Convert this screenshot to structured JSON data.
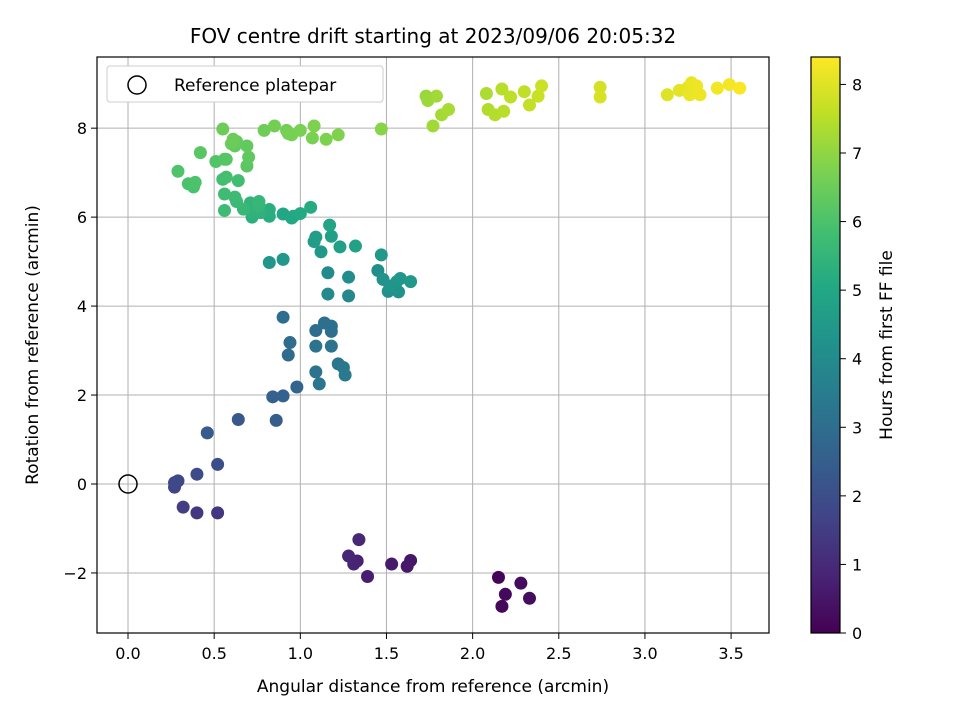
{
  "chart_data": {
    "type": "scatter",
    "title": "FOV centre drift starting at 2023/09/06 20:05:32",
    "xlabel": "Angular distance from reference (arcmin)",
    "ylabel": "Rotation from reference (arcmin)",
    "xlim": [
      -0.18,
      3.72
    ],
    "ylim": [
      -3.35,
      9.6
    ],
    "xticks": [
      0.0,
      0.5,
      1.0,
      1.5,
      2.0,
      2.5,
      3.0,
      3.5
    ],
    "xtick_labels": [
      "0.0",
      "0.5",
      "1.0",
      "1.5",
      "2.0",
      "2.5",
      "3.0",
      "3.5"
    ],
    "yticks": [
      -2,
      0,
      2,
      4,
      6,
      8
    ],
    "ytick_labels": [
      "−2",
      "0",
      "2",
      "4",
      "6",
      "8"
    ],
    "grid": true,
    "legend": {
      "position": "upper-left",
      "entries": [
        "Reference platepar"
      ]
    },
    "reference_point": {
      "x": 0.0,
      "y": 0.0,
      "label": "Reference platepar"
    },
    "colorbar": {
      "label": "Hours from first FF file",
      "colormap": "viridis",
      "range": [
        0,
        8.4
      ],
      "ticks": [
        0,
        1,
        2,
        3,
        4,
        5,
        6,
        7,
        8
      ],
      "tick_labels": [
        "0",
        "1",
        "2",
        "3",
        "4",
        "5",
        "6",
        "7",
        "8"
      ]
    },
    "points": [
      {
        "x": 2.15,
        "y": -2.1,
        "h": 0.1
      },
      {
        "x": 2.17,
        "y": -2.75,
        "h": 0.15
      },
      {
        "x": 2.19,
        "y": -2.48,
        "h": 0.2
      },
      {
        "x": 2.28,
        "y": -2.23,
        "h": 0.25
      },
      {
        "x": 2.33,
        "y": -2.57,
        "h": 0.3
      },
      {
        "x": 1.64,
        "y": -1.72,
        "h": 0.5
      },
      {
        "x": 1.62,
        "y": -1.85,
        "h": 0.55
      },
      {
        "x": 1.53,
        "y": -1.8,
        "h": 0.6
      },
      {
        "x": 1.39,
        "y": -2.08,
        "h": 0.7
      },
      {
        "x": 1.33,
        "y": -1.73,
        "h": 0.8
      },
      {
        "x": 1.31,
        "y": -1.8,
        "h": 0.85
      },
      {
        "x": 1.28,
        "y": -1.62,
        "h": 0.9
      },
      {
        "x": 1.34,
        "y": -1.25,
        "h": 0.95
      },
      {
        "x": 0.52,
        "y": -0.65,
        "h": 1.3
      },
      {
        "x": 0.4,
        "y": -0.65,
        "h": 1.4
      },
      {
        "x": 0.32,
        "y": -0.52,
        "h": 1.5
      },
      {
        "x": 0.27,
        "y": -0.07,
        "h": 1.7
      },
      {
        "x": 0.27,
        "y": 0.03,
        "h": 1.8
      },
      {
        "x": 0.29,
        "y": 0.07,
        "h": 1.85
      },
      {
        "x": 0.4,
        "y": 0.22,
        "h": 1.9
      },
      {
        "x": 0.52,
        "y": 0.44,
        "h": 2.0
      },
      {
        "x": 0.64,
        "y": 1.45,
        "h": 2.3
      },
      {
        "x": 0.46,
        "y": 1.15,
        "h": 2.4
      },
      {
        "x": 0.86,
        "y": 1.43,
        "h": 2.5
      },
      {
        "x": 0.84,
        "y": 1.96,
        "h": 2.6
      },
      {
        "x": 0.9,
        "y": 1.98,
        "h": 2.6
      },
      {
        "x": 0.98,
        "y": 2.18,
        "h": 2.7
      },
      {
        "x": 0.93,
        "y": 2.9,
        "h": 2.9
      },
      {
        "x": 0.94,
        "y": 3.18,
        "h": 2.95
      },
      {
        "x": 0.9,
        "y": 3.75,
        "h": 3.0
      },
      {
        "x": 1.09,
        "y": 3.45,
        "h": 3.0
      },
      {
        "x": 1.14,
        "y": 3.62,
        "h": 3.05
      },
      {
        "x": 1.18,
        "y": 3.55,
        "h": 3.1
      },
      {
        "x": 1.18,
        "y": 3.43,
        "h": 3.1
      },
      {
        "x": 1.09,
        "y": 3.1,
        "h": 3.15
      },
      {
        "x": 1.18,
        "y": 3.1,
        "h": 3.2
      },
      {
        "x": 1.09,
        "y": 2.52,
        "h": 3.2
      },
      {
        "x": 1.11,
        "y": 2.25,
        "h": 3.25
      },
      {
        "x": 1.22,
        "y": 2.7,
        "h": 3.3
      },
      {
        "x": 1.25,
        "y": 2.62,
        "h": 3.35
      },
      {
        "x": 1.26,
        "y": 2.45,
        "h": 3.4
      },
      {
        "x": 1.28,
        "y": 4.23,
        "h": 3.9
      },
      {
        "x": 1.16,
        "y": 4.27,
        "h": 3.95
      },
      {
        "x": 1.16,
        "y": 4.75,
        "h": 4.0
      },
      {
        "x": 1.28,
        "y": 4.65,
        "h": 4.05
      },
      {
        "x": 1.45,
        "y": 4.8,
        "h": 4.1
      },
      {
        "x": 1.51,
        "y": 4.33,
        "h": 4.15
      },
      {
        "x": 1.57,
        "y": 4.32,
        "h": 4.2
      },
      {
        "x": 1.48,
        "y": 4.6,
        "h": 4.25
      },
      {
        "x": 1.52,
        "y": 4.45,
        "h": 4.3
      },
      {
        "x": 1.56,
        "y": 4.55,
        "h": 4.35
      },
      {
        "x": 1.58,
        "y": 4.62,
        "h": 4.4
      },
      {
        "x": 1.64,
        "y": 4.55,
        "h": 4.45
      },
      {
        "x": 0.82,
        "y": 4.98,
        "h": 4.4
      },
      {
        "x": 0.9,
        "y": 5.05,
        "h": 4.45
      },
      {
        "x": 1.12,
        "y": 5.22,
        "h": 4.5
      },
      {
        "x": 1.47,
        "y": 5.15,
        "h": 4.5
      },
      {
        "x": 1.08,
        "y": 5.45,
        "h": 4.6
      },
      {
        "x": 1.09,
        "y": 5.55,
        "h": 4.65
      },
      {
        "x": 1.18,
        "y": 5.57,
        "h": 4.7
      },
      {
        "x": 1.23,
        "y": 5.33,
        "h": 4.75
      },
      {
        "x": 1.32,
        "y": 5.35,
        "h": 4.8
      },
      {
        "x": 1.17,
        "y": 5.82,
        "h": 4.9
      },
      {
        "x": 0.9,
        "y": 6.07,
        "h": 5.0
      },
      {
        "x": 0.96,
        "y": 6.02,
        "h": 5.05
      },
      {
        "x": 0.95,
        "y": 5.98,
        "h": 5.05
      },
      {
        "x": 1.0,
        "y": 6.08,
        "h": 5.1
      },
      {
        "x": 1.06,
        "y": 6.22,
        "h": 5.15
      },
      {
        "x": 0.82,
        "y": 6.02,
        "h": 5.2
      },
      {
        "x": 0.82,
        "y": 6.17,
        "h": 5.25
      },
      {
        "x": 0.72,
        "y": 6.0,
        "h": 5.3
      },
      {
        "x": 0.77,
        "y": 6.1,
        "h": 5.35
      },
      {
        "x": 0.72,
        "y": 6.12,
        "h": 5.4
      },
      {
        "x": 0.71,
        "y": 6.32,
        "h": 5.45
      },
      {
        "x": 0.76,
        "y": 6.25,
        "h": 5.5
      },
      {
        "x": 0.76,
        "y": 6.35,
        "h": 5.55
      },
      {
        "x": 0.67,
        "y": 6.18,
        "h": 5.6
      },
      {
        "x": 0.63,
        "y": 6.35,
        "h": 5.65
      },
      {
        "x": 0.62,
        "y": 6.45,
        "h": 5.7
      },
      {
        "x": 0.56,
        "y": 6.15,
        "h": 5.7
      },
      {
        "x": 0.56,
        "y": 6.52,
        "h": 5.75
      },
      {
        "x": 0.64,
        "y": 6.82,
        "h": 5.8
      },
      {
        "x": 0.55,
        "y": 6.85,
        "h": 5.85
      },
      {
        "x": 0.57,
        "y": 6.9,
        "h": 5.9
      },
      {
        "x": 0.35,
        "y": 6.75,
        "h": 5.95
      },
      {
        "x": 0.38,
        "y": 6.68,
        "h": 5.95
      },
      {
        "x": 0.39,
        "y": 6.78,
        "h": 6.0
      },
      {
        "x": 0.29,
        "y": 7.03,
        "h": 6.05
      },
      {
        "x": 0.51,
        "y": 7.25,
        "h": 6.1
      },
      {
        "x": 0.56,
        "y": 7.3,
        "h": 6.15
      },
      {
        "x": 0.57,
        "y": 7.3,
        "h": 6.15
      },
      {
        "x": 0.42,
        "y": 7.45,
        "h": 6.2
      },
      {
        "x": 0.69,
        "y": 7.15,
        "h": 6.25
      },
      {
        "x": 0.7,
        "y": 7.35,
        "h": 6.3
      },
      {
        "x": 0.69,
        "y": 7.6,
        "h": 6.35
      },
      {
        "x": 0.62,
        "y": 7.6,
        "h": 6.35
      },
      {
        "x": 0.63,
        "y": 7.7,
        "h": 6.4
      },
      {
        "x": 0.6,
        "y": 7.65,
        "h": 6.45
      },
      {
        "x": 0.61,
        "y": 7.75,
        "h": 6.5
      },
      {
        "x": 0.55,
        "y": 7.98,
        "h": 6.5
      },
      {
        "x": 0.79,
        "y": 7.95,
        "h": 6.55
      },
      {
        "x": 0.85,
        "y": 8.05,
        "h": 6.6
      },
      {
        "x": 0.92,
        "y": 7.95,
        "h": 6.6
      },
      {
        "x": 0.93,
        "y": 7.88,
        "h": 6.65
      },
      {
        "x": 0.95,
        "y": 7.85,
        "h": 6.65
      },
      {
        "x": 1.0,
        "y": 7.95,
        "h": 6.7
      },
      {
        "x": 1.07,
        "y": 7.78,
        "h": 6.7
      },
      {
        "x": 1.08,
        "y": 8.05,
        "h": 6.75
      },
      {
        "x": 1.15,
        "y": 7.75,
        "h": 6.75
      },
      {
        "x": 1.22,
        "y": 7.85,
        "h": 6.8
      },
      {
        "x": 1.47,
        "y": 7.98,
        "h": 6.9
      },
      {
        "x": 1.73,
        "y": 8.72,
        "h": 7.1
      },
      {
        "x": 1.74,
        "y": 8.62,
        "h": 7.15
      },
      {
        "x": 1.79,
        "y": 8.72,
        "h": 7.2
      },
      {
        "x": 1.77,
        "y": 8.05,
        "h": 7.2
      },
      {
        "x": 1.82,
        "y": 8.3,
        "h": 7.25
      },
      {
        "x": 1.86,
        "y": 8.42,
        "h": 7.3
      },
      {
        "x": 2.08,
        "y": 8.78,
        "h": 7.35
      },
      {
        "x": 2.09,
        "y": 8.42,
        "h": 7.4
      },
      {
        "x": 2.13,
        "y": 8.3,
        "h": 7.45
      },
      {
        "x": 2.17,
        "y": 8.88,
        "h": 7.5
      },
      {
        "x": 2.18,
        "y": 8.38,
        "h": 7.5
      },
      {
        "x": 2.22,
        "y": 8.7,
        "h": 7.55
      },
      {
        "x": 2.3,
        "y": 8.82,
        "h": 7.6
      },
      {
        "x": 2.33,
        "y": 8.52,
        "h": 7.65
      },
      {
        "x": 2.38,
        "y": 8.72,
        "h": 7.7
      },
      {
        "x": 2.4,
        "y": 8.95,
        "h": 7.75
      },
      {
        "x": 2.74,
        "y": 8.92,
        "h": 7.85
      },
      {
        "x": 2.74,
        "y": 8.7,
        "h": 7.9
      },
      {
        "x": 3.13,
        "y": 8.75,
        "h": 8.0
      },
      {
        "x": 3.2,
        "y": 8.85,
        "h": 8.05
      },
      {
        "x": 3.25,
        "y": 8.92,
        "h": 8.1
      },
      {
        "x": 3.27,
        "y": 9.02,
        "h": 8.15
      },
      {
        "x": 3.26,
        "y": 8.75,
        "h": 8.15
      },
      {
        "x": 3.3,
        "y": 8.95,
        "h": 8.2
      },
      {
        "x": 3.32,
        "y": 8.75,
        "h": 8.2
      },
      {
        "x": 3.42,
        "y": 8.9,
        "h": 8.25
      },
      {
        "x": 3.49,
        "y": 8.98,
        "h": 8.3
      },
      {
        "x": 3.55,
        "y": 8.9,
        "h": 8.35
      }
    ]
  }
}
